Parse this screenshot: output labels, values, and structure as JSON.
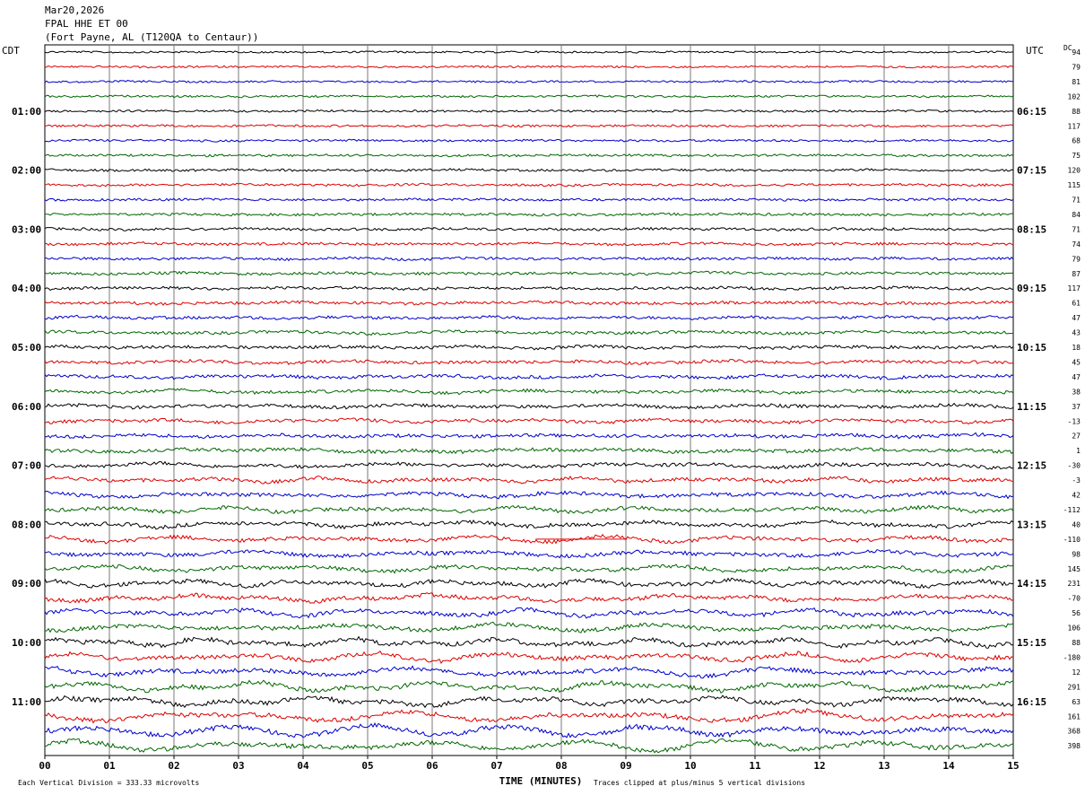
{
  "header": {
    "date": "Mar20,2026",
    "station": "FPAL HHE ET 00",
    "location": "(Fort Payne, AL (T120QA to Centaur))"
  },
  "footer": {
    "scale_note": "Each Vertical Division =  333.33 microvolts",
    "clip_note": "Traces clipped at plus/minus 5 vertical divisions"
  },
  "chart_data": {
    "type": "line",
    "subtype": "helicorder",
    "xlabel": "TIME (MINUTES)",
    "x_ticks": [
      "00",
      "01",
      "02",
      "03",
      "04",
      "05",
      "06",
      "07",
      "08",
      "09",
      "10",
      "11",
      "12",
      "13",
      "14",
      "15"
    ],
    "xlim": [
      0,
      15
    ],
    "left_axis_label": "CDT",
    "right_axis_label": "UTC",
    "dc_label": "DC",
    "left_time_labels": [
      "01:00",
      "02:00",
      "03:00",
      "04:00",
      "05:00",
      "06:00",
      "07:00",
      "08:00",
      "09:00",
      "10:00",
      "11:00"
    ],
    "right_time_labels": [
      "06:15",
      "07:15",
      "08:15",
      "09:15",
      "10:15",
      "11:15",
      "12:15",
      "13:15",
      "14:15",
      "15:15",
      "16:15"
    ],
    "trace_colors": [
      "#000000",
      "#dd0000",
      "#0000cc",
      "#006600"
    ],
    "grid": true,
    "row_dc_offsets": [
      94,
      79,
      81,
      102,
      88,
      117,
      68,
      75,
      120,
      115,
      71,
      84,
      71,
      74,
      79,
      87,
      117,
      61,
      47,
      43,
      18,
      45,
      47,
      38,
      37,
      -13,
      27,
      1,
      -30,
      -3,
      42,
      -112,
      40,
      -110,
      98,
      145,
      231,
      -70,
      56,
      106,
      88,
      -180,
      12,
      291,
      63,
      161,
      368,
      398
    ]
  }
}
